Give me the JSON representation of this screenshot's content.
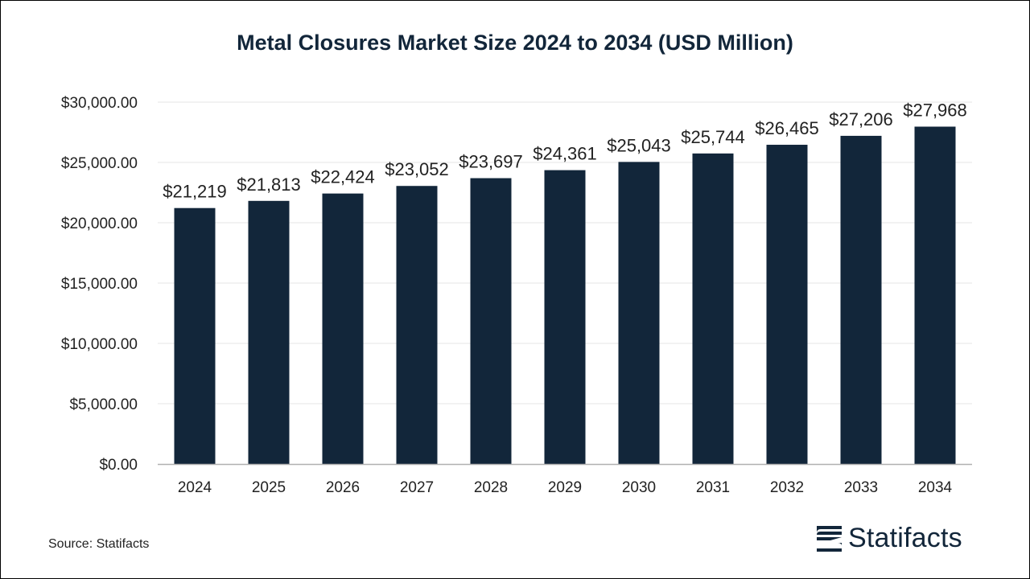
{
  "chart_data": {
    "type": "bar",
    "title": "Metal Closures Market Size 2024 to 2034 (USD Million)",
    "xlabel": "",
    "ylabel": "",
    "categories": [
      "2024",
      "2025",
      "2026",
      "2027",
      "2028",
      "2029",
      "2030",
      "2031",
      "2032",
      "2033",
      "2034"
    ],
    "values": [
      21219,
      21813,
      22424,
      23052,
      23697,
      24361,
      25043,
      25744,
      26465,
      27206,
      27968
    ],
    "data_labels": [
      "$21,219",
      "$21,813",
      "$22,424",
      "$23,052",
      "$23,697",
      "$24,361",
      "$25,043",
      "$25,744",
      "$26,465",
      "$27,206",
      "$27,968"
    ],
    "ylim": [
      0,
      30000
    ],
    "yticks": [
      0,
      5000,
      10000,
      15000,
      20000,
      25000,
      30000
    ],
    "ytick_labels": [
      "$0.00",
      "$5,000.00",
      "$10,000.00",
      "$15,000.00",
      "$20,000.00",
      "$25,000.00",
      "$30,000.00"
    ],
    "grid": true,
    "legend": "none",
    "bar_color": "#12263a"
  },
  "footer": {
    "source": "Source: Statifacts",
    "brand": "Statifacts"
  },
  "colors": {
    "title": "#12263a",
    "grid": "#e6e6e6",
    "axis": "#b0b0b0",
    "text": "#222222"
  }
}
